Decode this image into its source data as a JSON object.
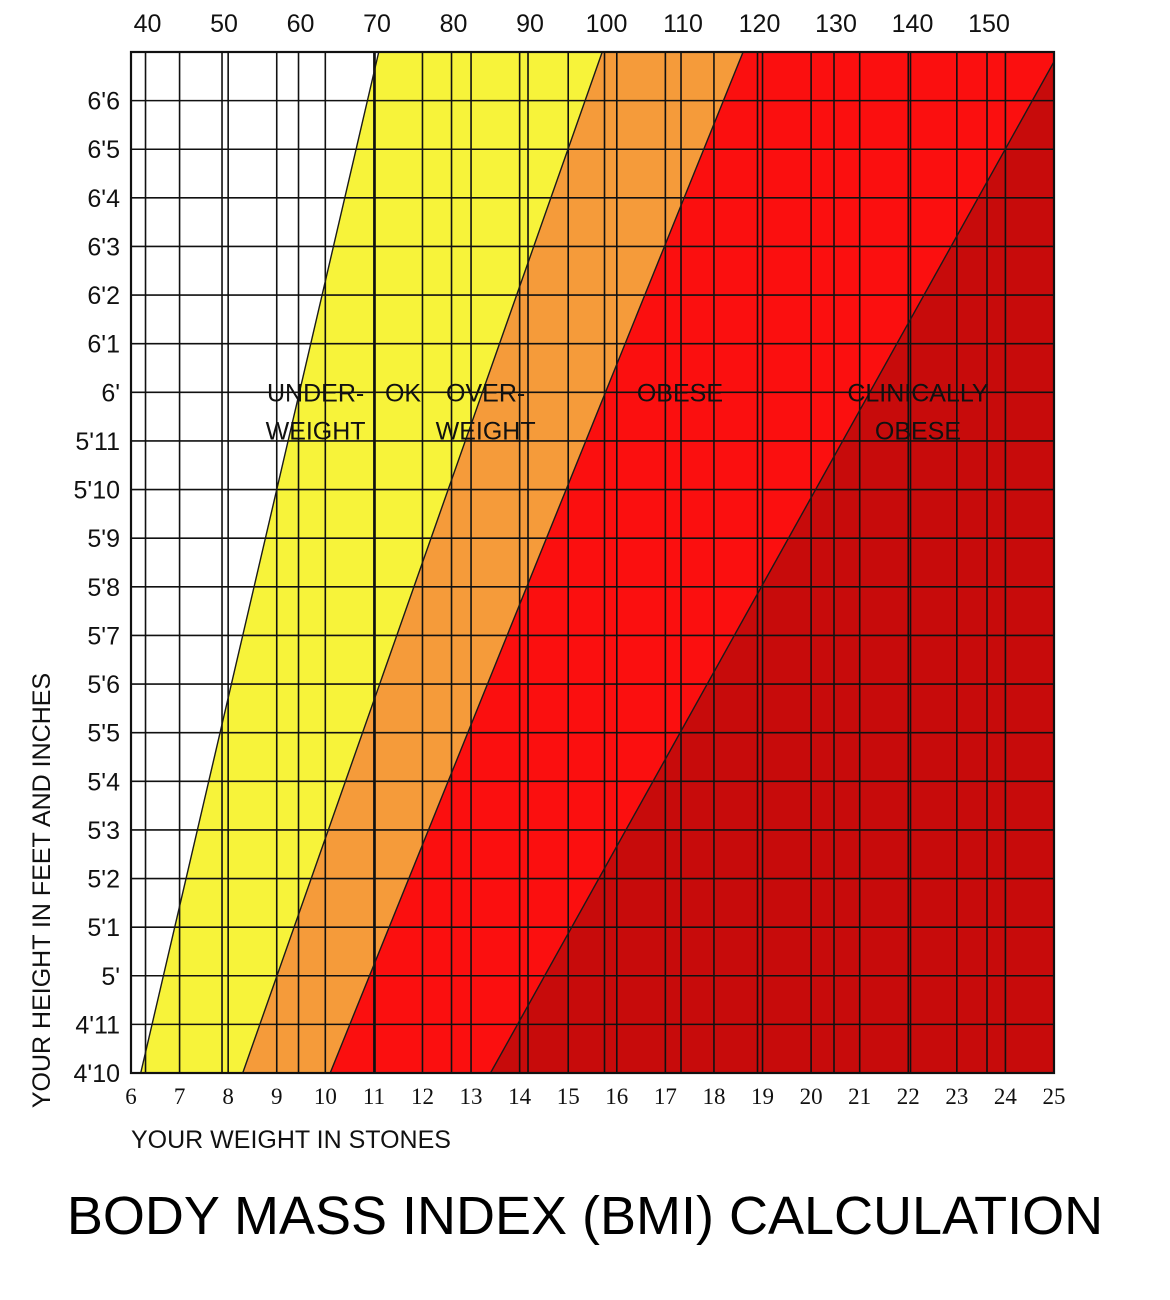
{
  "title": "BODY MASS INDEX (BMI) CALCULATION",
  "colors": {
    "underweight": "#ffffff",
    "ok": "#f7f33a",
    "overweight": "#f59b3a",
    "obese": "#fb0f0f",
    "clinically_obese": "#c70b0b",
    "grid": "#111111"
  },
  "chart_data": {
    "type": "area",
    "title": "BODY MASS INDEX (BMI) CALCULATION",
    "xlabel": "YOUR WEIGHT IN STONES",
    "ylabel": "YOUR HEIGHT IN FEET AND INCHES",
    "x_unit": "stones",
    "secondary_x_unit": "kg",
    "xlim": [
      6,
      25
    ],
    "ylim_inches": [
      58,
      79
    ],
    "x_ticks": [
      "6",
      "7",
      "8",
      "9",
      "10",
      "11",
      "12",
      "13",
      "14",
      "15",
      "16",
      "17",
      "18",
      "19",
      "20",
      "21",
      "22",
      "23",
      "24",
      "25"
    ],
    "x_tick_values": [
      6,
      7,
      8,
      9,
      10,
      11,
      12,
      13,
      14,
      15,
      16,
      17,
      18,
      19,
      20,
      21,
      22,
      23,
      24,
      25
    ],
    "top_ticks": [
      "40",
      "50",
      "60",
      "70",
      "80",
      "90",
      "100",
      "110",
      "120",
      "130",
      "140",
      "150"
    ],
    "top_tick_values": [
      40,
      50,
      60,
      70,
      80,
      90,
      100,
      110,
      120,
      130,
      140,
      150
    ],
    "y_ticks": [
      "4'10",
      "4'11",
      "5'",
      "5'1",
      "5'2",
      "5'3",
      "5'4",
      "5'5",
      "5'6",
      "5'7",
      "5'8",
      "5'9",
      "5'10",
      "5'11",
      "6'",
      "6'1",
      "6'2",
      "6'3",
      "6'4",
      "6'5",
      "6'6"
    ],
    "y_tick_values_inches": [
      58,
      59,
      60,
      61,
      62,
      63,
      64,
      65,
      66,
      67,
      68,
      69,
      70,
      71,
      72,
      73,
      74,
      75,
      76,
      77,
      78
    ],
    "grid": true,
    "zones": [
      {
        "label_lines": [
          "UNDER-",
          "WEIGHT"
        ],
        "key": "underweight",
        "label_at": {
          "x": 9.8,
          "y": 72
        }
      },
      {
        "label_lines": [
          "OK"
        ],
        "key": "ok",
        "label_at": {
          "x": 11.6,
          "y": 72
        }
      },
      {
        "label_lines": [
          "OVER-",
          "WEIGHT"
        ],
        "key": "overweight",
        "label_at": {
          "x": 13.3,
          "y": 72
        }
      },
      {
        "label_lines": [
          "OBESE"
        ],
        "key": "obese",
        "label_at": {
          "x": 17.3,
          "y": 72
        }
      },
      {
        "label_lines": [
          "CLINICALLY",
          "OBESE"
        ],
        "key": "clinically_obese",
        "label_at": {
          "x": 22.2,
          "y": 72
        }
      }
    ],
    "boundaries": [
      {
        "name": "underweight/ok",
        "points": [
          [
            6.2,
            58
          ],
          [
            11.1,
            79
          ]
        ]
      },
      {
        "name": "ok/overweight",
        "points": [
          [
            8.3,
            58
          ],
          [
            15.7,
            79
          ]
        ]
      },
      {
        "name": "overweight/obese",
        "points": [
          [
            10.1,
            58
          ],
          [
            18.6,
            79
          ]
        ]
      },
      {
        "name": "obese/clinically obese",
        "points": [
          [
            13.4,
            58
          ],
          [
            25,
            78.8
          ]
        ]
      }
    ]
  }
}
